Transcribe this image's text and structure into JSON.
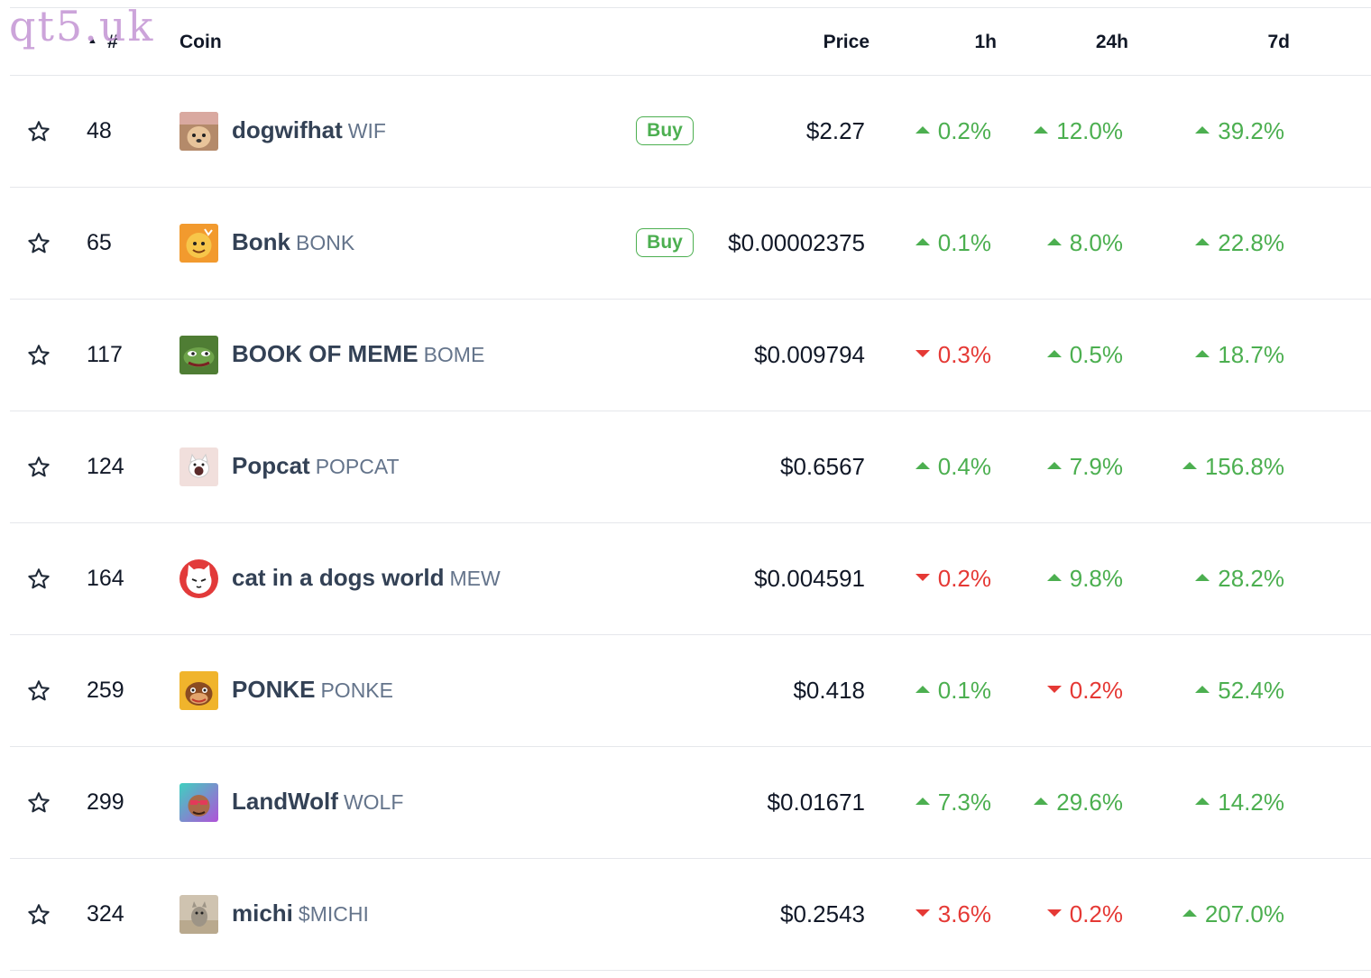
{
  "watermark": "qt5.uk",
  "header": {
    "sort_indicator": "▲",
    "rank": "#",
    "coin": "Coin",
    "price": "Price",
    "h1": "1h",
    "h24": "24h",
    "d7": "7d"
  },
  "colors": {
    "up": "#4caf50",
    "down": "#e53935"
  },
  "rows": [
    {
      "rank": "48",
      "name": "dogwifhat",
      "symbol": "WIF",
      "buy": "Buy",
      "price": "$2.27",
      "h1": {
        "v": "0.2%",
        "dir": "up"
      },
      "h24": {
        "v": "12.0%",
        "dir": "up"
      },
      "d7": {
        "v": "39.2%",
        "dir": "up"
      },
      "icon": "dogwifhat-logo"
    },
    {
      "rank": "65",
      "name": "Bonk",
      "symbol": "BONK",
      "buy": "Buy",
      "price": "$0.00002375",
      "h1": {
        "v": "0.1%",
        "dir": "up"
      },
      "h24": {
        "v": "8.0%",
        "dir": "up"
      },
      "d7": {
        "v": "22.8%",
        "dir": "up"
      },
      "icon": "bonk-logo"
    },
    {
      "rank": "117",
      "name": "BOOK OF MEME",
      "symbol": "BOME",
      "buy": "",
      "price": "$0.009794",
      "h1": {
        "v": "0.3%",
        "dir": "down"
      },
      "h24": {
        "v": "0.5%",
        "dir": "up"
      },
      "d7": {
        "v": "18.7%",
        "dir": "up"
      },
      "icon": "book-of-meme-logo"
    },
    {
      "rank": "124",
      "name": "Popcat",
      "symbol": "POPCAT",
      "buy": "",
      "price": "$0.6567",
      "h1": {
        "v": "0.4%",
        "dir": "up"
      },
      "h24": {
        "v": "7.9%",
        "dir": "up"
      },
      "d7": {
        "v": "156.8%",
        "dir": "up"
      },
      "icon": "popcat-logo"
    },
    {
      "rank": "164",
      "name": "cat in a dogs world",
      "symbol": "MEW",
      "buy": "",
      "price": "$0.004591",
      "h1": {
        "v": "0.2%",
        "dir": "down"
      },
      "h24": {
        "v": "9.8%",
        "dir": "up"
      },
      "d7": {
        "v": "28.2%",
        "dir": "up"
      },
      "icon": "mew-logo"
    },
    {
      "rank": "259",
      "name": "PONKE",
      "symbol": "PONKE",
      "buy": "",
      "price": "$0.418",
      "h1": {
        "v": "0.1%",
        "dir": "up"
      },
      "h24": {
        "v": "0.2%",
        "dir": "down"
      },
      "d7": {
        "v": "52.4%",
        "dir": "up"
      },
      "icon": "ponke-logo"
    },
    {
      "rank": "299",
      "name": "LandWolf",
      "symbol": "WOLF",
      "buy": "",
      "price": "$0.01671",
      "h1": {
        "v": "7.3%",
        "dir": "up"
      },
      "h24": {
        "v": "29.6%",
        "dir": "up"
      },
      "d7": {
        "v": "14.2%",
        "dir": "up"
      },
      "icon": "landwolf-logo"
    },
    {
      "rank": "324",
      "name": "michi",
      "symbol": "$MICHI",
      "buy": "",
      "price": "$0.2543",
      "h1": {
        "v": "3.6%",
        "dir": "down"
      },
      "h24": {
        "v": "0.2%",
        "dir": "down"
      },
      "d7": {
        "v": "207.0%",
        "dir": "up"
      },
      "icon": "michi-logo"
    }
  ]
}
